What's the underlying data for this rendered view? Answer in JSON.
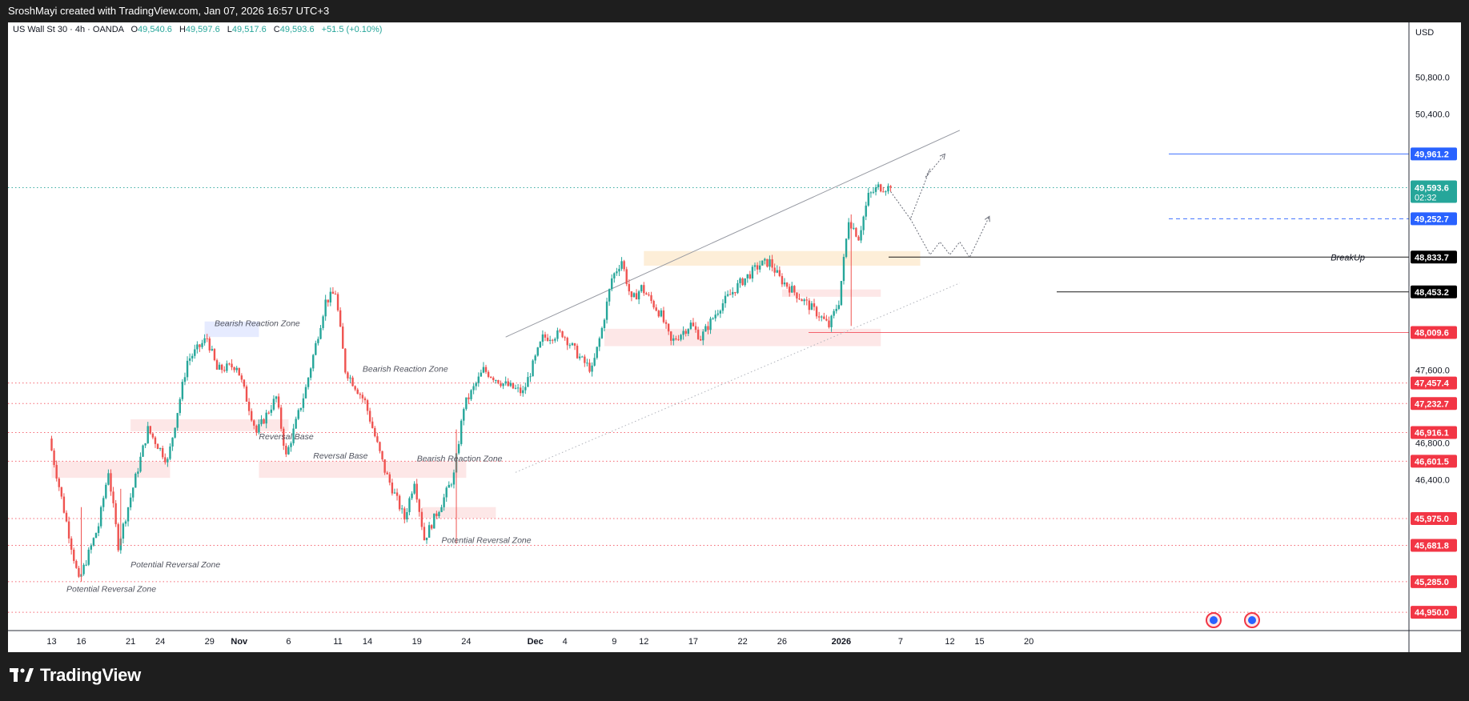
{
  "header": {
    "attribution": "SroshMayi created with TradingView.com, Jan 07, 2026 16:57 UTC+3"
  },
  "footer": {
    "brand": "TradingView"
  },
  "chart_data": {
    "type": "candlestick",
    "symbol": "US Wall St 30",
    "interval": "4h",
    "source": "OANDA",
    "ohlc": {
      "o_label": "O",
      "o": "49,540.6",
      "h_label": "H",
      "h": "49,597.6",
      "l_label": "L",
      "l": "49,517.6",
      "c_label": "C",
      "c": "49,593.6",
      "change": "+51.5 (+0.10%)"
    },
    "currency": "USD",
    "ylim": [
      44750,
      51400
    ],
    "y_ticks": [
      {
        "value": 50800,
        "label": "50,800.0"
      },
      {
        "value": 50400,
        "label": "50,400.0"
      },
      {
        "value": 47600,
        "label": "47,600.0"
      },
      {
        "value": 46800,
        "label": "46,800.0"
      },
      {
        "value": 46400,
        "label": "46,400.0"
      }
    ],
    "x_ticks": [
      {
        "day": 0,
        "label": "13"
      },
      {
        "day": 3,
        "label": "16"
      },
      {
        "day": 8,
        "label": "21"
      },
      {
        "day": 11,
        "label": "24"
      },
      {
        "day": 16,
        "label": "29"
      },
      {
        "day": 19,
        "label": "Nov"
      },
      {
        "day": 24,
        "label": "6"
      },
      {
        "day": 29,
        "label": "11"
      },
      {
        "day": 32,
        "label": "14"
      },
      {
        "day": 37,
        "label": "19"
      },
      {
        "day": 42,
        "label": "24"
      },
      {
        "day": 49,
        "label": "Dec"
      },
      {
        "day": 52,
        "label": "4"
      },
      {
        "day": 57,
        "label": "9"
      },
      {
        "day": 60,
        "label": "12"
      },
      {
        "day": 65,
        "label": "17"
      },
      {
        "day": 70,
        "label": "22"
      },
      {
        "day": 74,
        "label": "26"
      },
      {
        "day": 80,
        "label": "2026"
      },
      {
        "day": 86,
        "label": "7"
      },
      {
        "day": 91,
        "label": "12"
      },
      {
        "day": 94,
        "label": "15"
      },
      {
        "day": 99,
        "label": "20"
      }
    ],
    "price_path": [
      [
        0,
        46850
      ],
      [
        3,
        45285
      ],
      [
        5,
        45900
      ],
      [
        6,
        46500
      ],
      [
        7,
        45681
      ],
      [
        10,
        46950
      ],
      [
        12,
        46601
      ],
      [
        14,
        47700
      ],
      [
        16,
        47950
      ],
      [
        17,
        47600
      ],
      [
        19,
        47650
      ],
      [
        21,
        46916
      ],
      [
        23,
        47300
      ],
      [
        24,
        46650
      ],
      [
        26,
        47400
      ],
      [
        28,
        48350
      ],
      [
        29,
        48450
      ],
      [
        30,
        47600
      ],
      [
        32,
        47250
      ],
      [
        34,
        46500
      ],
      [
        36,
        45975
      ],
      [
        37,
        46400
      ],
      [
        38,
        45750
      ],
      [
        40,
        46200
      ],
      [
        41,
        46450
      ],
      [
        42,
        47200
      ],
      [
        44,
        47600
      ],
      [
        46,
        47450
      ],
      [
        48,
        47350
      ],
      [
        50,
        47950
      ],
      [
        52,
        48000
      ],
      [
        54,
        47700
      ],
      [
        55,
        47600
      ],
      [
        56,
        48050
      ],
      [
        57,
        48600
      ],
      [
        58,
        48800
      ],
      [
        59,
        48350
      ],
      [
        60,
        48500
      ],
      [
        62,
        48200
      ],
      [
        63,
        47900
      ],
      [
        65,
        48100
      ],
      [
        66,
        47950
      ],
      [
        68,
        48300
      ],
      [
        70,
        48550
      ],
      [
        72,
        48750
      ],
      [
        73,
        48780
      ],
      [
        74,
        48600
      ],
      [
        76,
        48400
      ],
      [
        78,
        48200
      ],
      [
        79,
        48080
      ],
      [
        80,
        48350
      ],
      [
        81,
        49250
      ],
      [
        82,
        49050
      ],
      [
        83,
        49500
      ],
      [
        84,
        49600
      ],
      [
        85,
        49593.6
      ]
    ],
    "horizontal_levels": [
      {
        "value": 49961.2,
        "label": "49,961.2",
        "color": "#2962ff",
        "style": "solid"
      },
      {
        "value": 49593.6,
        "label": "49,593.6",
        "sublabel": "02:32",
        "color": "#26a69a",
        "style": "dotted"
      },
      {
        "value": 49252.7,
        "label": "49,252.7",
        "color": "#2962ff",
        "style": "dashed"
      },
      {
        "value": 48833.7,
        "label": "48,833.7",
        "color": "#000000",
        "style": "solid",
        "annotation": "BreakUp"
      },
      {
        "value": 48453.2,
        "label": "48,453.2",
        "color": "#000000",
        "style": "solid"
      },
      {
        "value": 48009.6,
        "label": "48,009.6",
        "color": "#f23645",
        "style": "solid"
      },
      {
        "value": 47457.4,
        "label": "47,457.4",
        "color": "#f23645",
        "style": "dotted"
      },
      {
        "value": 47232.7,
        "label": "47,232.7",
        "color": "#f23645",
        "style": "dotted"
      },
      {
        "value": 46916.1,
        "label": "46,916.1",
        "color": "#f23645",
        "style": "dotted"
      },
      {
        "value": 46601.5,
        "label": "46,601.5",
        "color": "#f23645",
        "style": "dotted"
      },
      {
        "value": 45975.0,
        "label": "45,975.0",
        "color": "#f23645",
        "style": "dotted"
      },
      {
        "value": 45681.8,
        "label": "45,681.8",
        "color": "#f23645",
        "style": "dotted"
      },
      {
        "value": 45285.0,
        "label": "45,285.0",
        "color": "#f23645",
        "style": "dotted"
      },
      {
        "value": 44950.0,
        "label": "44,950.0",
        "color": "#f23645",
        "style": "dotted"
      }
    ],
    "zones": [
      {
        "x0": 0,
        "x1": 12,
        "y0": 46420,
        "y1": 46600,
        "color": "#fde7e7"
      },
      {
        "x0": 8,
        "x1": 24,
        "y0": 46930,
        "y1": 47060,
        "color": "#fde7e7"
      },
      {
        "x0": 15.5,
        "x1": 21,
        "y0": 47960,
        "y1": 48130,
        "color": "#e6ebff"
      },
      {
        "x0": 21,
        "x1": 42,
        "y0": 46420,
        "y1": 46600,
        "color": "#fde7e7"
      },
      {
        "x0": 37.5,
        "x1": 45,
        "y0": 45980,
        "y1": 46100,
        "color": "#fde7e7"
      },
      {
        "x0": 60,
        "x1": 88,
        "y0": 48740,
        "y1": 48900,
        "color": "#fdeed8"
      },
      {
        "x0": 56,
        "x1": 84,
        "y0": 47860,
        "y1": 48050,
        "color": "#fde7e7"
      },
      {
        "x0": 74,
        "x1": 84,
        "y0": 48400,
        "y1": 48480,
        "color": "#fde7e7"
      }
    ],
    "trendlines": [
      {
        "x0": 46,
        "y0": 47960,
        "x1": 92,
        "y1": 50220,
        "color": "#9598a1",
        "style": "solid"
      },
      {
        "x0": 47,
        "y0": 46480,
        "x1": 92,
        "y1": 48550,
        "color": "#b0b3bb",
        "style": "dotted"
      }
    ],
    "projections": [
      [
        [
          85,
          49550
        ],
        [
          87,
          49250
        ],
        [
          89,
          49800
        ],
        [
          88.5,
          49700
        ],
        [
          90.5,
          49961
        ]
      ],
      [
        [
          87,
          49252
        ],
        [
          89,
          48860
        ],
        [
          90,
          49000
        ],
        [
          91,
          48860
        ],
        [
          92,
          49000
        ],
        [
          93,
          48830
        ],
        [
          95,
          49280
        ]
      ]
    ],
    "annotations": [
      {
        "text": "Bearish Reaction Zone",
        "x": 16.5,
        "y": 48080
      },
      {
        "text": "Bearish Reaction Zone",
        "x": 31.5,
        "y": 47580
      },
      {
        "text": "Bearish Reaction Zone",
        "x": 37,
        "y": 46600
      },
      {
        "text": "Reversal Base",
        "x": 21,
        "y": 46840
      },
      {
        "text": "Reversal Base",
        "x": 26.5,
        "y": 46630
      },
      {
        "text": "Potential Reversal Zone",
        "x": 1.5,
        "y": 45175
      },
      {
        "text": "Potential Reversal Zone",
        "x": 8,
        "y": 45440
      },
      {
        "text": "Potential Reversal Zone",
        "x": 39.5,
        "y": 45710
      }
    ]
  }
}
